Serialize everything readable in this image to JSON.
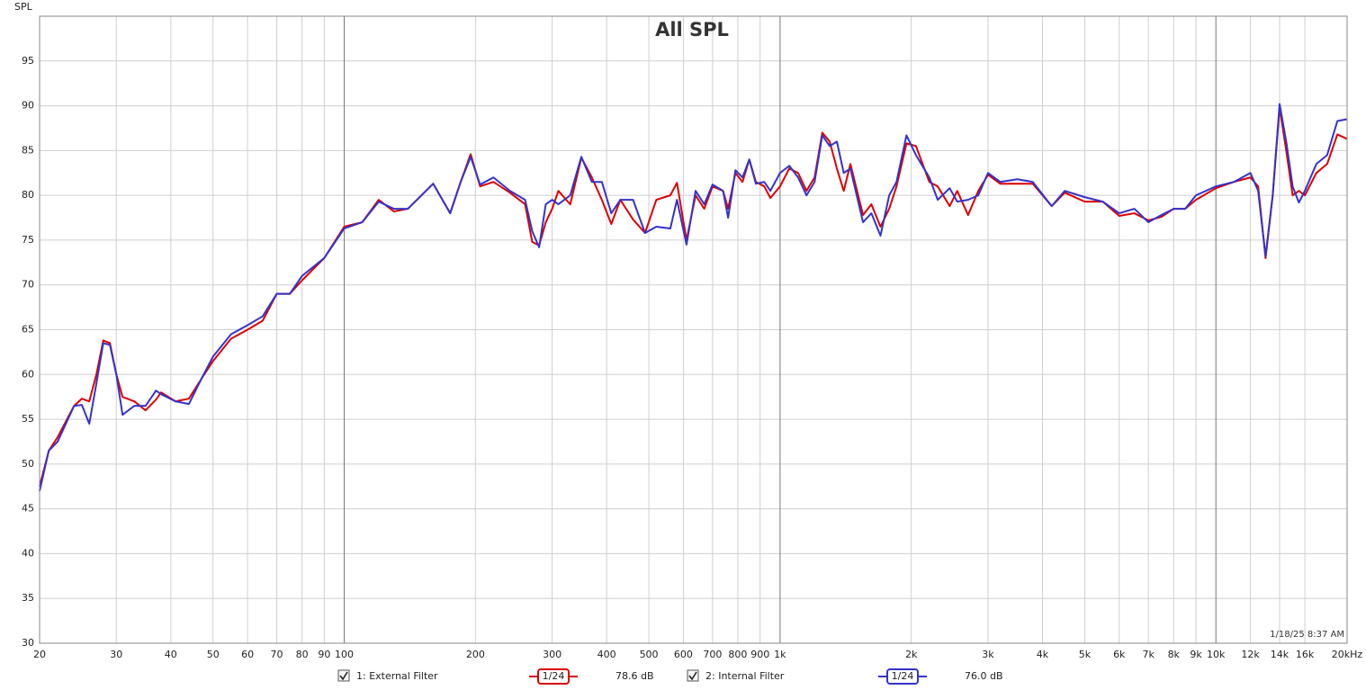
{
  "chart_data": {
    "type": "line",
    "title": "All SPL",
    "y_label": "SPL",
    "timestamp": "1/18/25 8:37 AM",
    "x_scale": "log",
    "grid": true,
    "xlim": [
      20,
      20000
    ],
    "ylim": [
      30,
      100
    ],
    "yticks": [
      30,
      35,
      40,
      45,
      50,
      55,
      60,
      65,
      70,
      75,
      80,
      85,
      90,
      95
    ],
    "xticks": [
      20,
      30,
      40,
      50,
      60,
      70,
      80,
      90,
      100,
      200,
      300,
      400,
      500,
      600,
      700,
      800,
      900,
      {
        "value": 1000,
        "label": "1k"
      },
      {
        "value": 2000,
        "label": "2k"
      },
      {
        "value": 3000,
        "label": "3k"
      },
      {
        "value": 4000,
        "label": "4k"
      },
      {
        "value": 5000,
        "label": "5k"
      },
      {
        "value": 6000,
        "label": "6k"
      },
      {
        "value": 7000,
        "label": "7k"
      },
      {
        "value": 8000,
        "label": "8k"
      },
      {
        "value": 9000,
        "label": "9k"
      },
      {
        "value": 10000,
        "label": "10k"
      },
      {
        "value": 12000,
        "label": "12k"
      },
      {
        "value": 14000,
        "label": "14k"
      },
      {
        "value": 16000,
        "label": "16k"
      },
      {
        "value": 20000,
        "label": "20kHz"
      }
    ],
    "x": [
      20,
      21,
      22,
      24,
      25,
      26,
      27,
      28,
      29,
      30,
      31,
      33,
      35,
      37,
      38,
      41,
      44,
      47,
      50,
      55,
      60,
      65,
      70,
      75,
      80,
      90,
      100,
      110,
      120,
      130,
      140,
      160,
      175,
      185,
      195,
      205,
      220,
      240,
      260,
      270,
      280,
      290,
      300,
      310,
      330,
      350,
      370,
      390,
      410,
      430,
      460,
      490,
      520,
      560,
      580,
      610,
      640,
      670,
      700,
      740,
      760,
      790,
      820,
      850,
      880,
      920,
      950,
      1000,
      1050,
      1100,
      1150,
      1200,
      1250,
      1300,
      1350,
      1400,
      1450,
      1550,
      1620,
      1700,
      1780,
      1850,
      1950,
      2050,
      2200,
      2300,
      2450,
      2550,
      2700,
      2850,
      3000,
      3200,
      3500,
      3800,
      4200,
      4500,
      5000,
      5500,
      6000,
      6500,
      7000,
      7500,
      8000,
      8500,
      9000,
      10000,
      11000,
      12000,
      12500,
      13000,
      13500,
      14000,
      14500,
      15000,
      15500,
      16000,
      17000,
      18000,
      19000,
      20000
    ],
    "series": [
      {
        "name": "1: External Filter",
        "color": "#dd0000",
        "smoothing": "1/24",
        "level": "78.6 dB",
        "values": [
          47.5,
          51.5,
          53,
          56.5,
          57.3,
          57,
          60,
          63.8,
          63.5,
          60,
          57.5,
          57,
          56,
          57.2,
          58,
          57,
          57.3,
          59.5,
          61.5,
          64,
          65,
          66,
          69,
          69,
          70.5,
          73,
          76.5,
          77,
          79.5,
          78.2,
          78.5,
          81.3,
          78,
          81.5,
          84.6,
          81,
          81.5,
          80.3,
          79,
          74.8,
          74.4,
          77,
          78.5,
          80.5,
          79,
          84.2,
          82,
          79.5,
          76.8,
          79.5,
          77.3,
          75.8,
          79.5,
          80,
          81.4,
          75,
          80,
          78.5,
          81,
          80.5,
          78.5,
          82.5,
          81.5,
          84,
          81.5,
          81,
          79.7,
          81,
          83,
          82.5,
          80.5,
          82,
          87,
          86,
          83,
          80.5,
          83.5,
          77.8,
          79,
          76.5,
          78.5,
          81,
          85.8,
          85.5,
          81.5,
          81,
          78.8,
          80.5,
          77.8,
          80.5,
          82.3,
          81.3,
          81.3,
          81.3,
          78.8,
          80.3,
          79.3,
          79.3,
          77.7,
          78,
          77.2,
          77.6,
          78.5,
          78.5,
          79.5,
          80.8,
          81.5,
          82,
          81,
          73,
          80,
          89.8,
          85,
          80,
          80.5,
          80,
          82.5,
          83.5,
          86.8,
          86.3
        ]
      },
      {
        "name": "2: Internal Filter",
        "color": "#3333cc",
        "smoothing": "1/24",
        "level": "76.0 dB",
        "values": [
          47,
          51.5,
          52.5,
          56.5,
          56.6,
          54.5,
          59,
          63.5,
          63.3,
          60,
          55.5,
          56.5,
          56.5,
          58.2,
          57.8,
          57,
          56.7,
          59.5,
          62,
          64.5,
          65.5,
          66.5,
          69,
          69,
          71,
          73,
          76.3,
          77,
          79.3,
          78.5,
          78.5,
          81.3,
          78,
          81.5,
          84.3,
          81.2,
          82,
          80.5,
          79.5,
          76,
          74.2,
          79,
          79.5,
          79,
          80,
          84.3,
          81.5,
          81.5,
          78,
          79.5,
          79.5,
          75.8,
          76.5,
          76.3,
          79.5,
          74.5,
          80.5,
          79,
          81.2,
          80.5,
          77.5,
          82.8,
          82,
          84,
          81.3,
          81.5,
          80.5,
          82.5,
          83.3,
          82,
          80,
          81.5,
          86.7,
          85.5,
          86,
          82.5,
          83,
          77,
          78,
          75.5,
          80,
          81.5,
          86.7,
          84.5,
          82,
          79.5,
          80.8,
          79.3,
          79.5,
          80,
          82.5,
          81.5,
          81.8,
          81.5,
          78.8,
          80.5,
          79.8,
          79.3,
          78,
          78.5,
          77,
          77.8,
          78.5,
          78.5,
          80,
          81,
          81.5,
          82.5,
          80.5,
          73.2,
          80,
          90.2,
          86,
          81,
          79.2,
          80.5,
          83.5,
          84.5,
          88.3,
          88.5
        ]
      }
    ]
  }
}
